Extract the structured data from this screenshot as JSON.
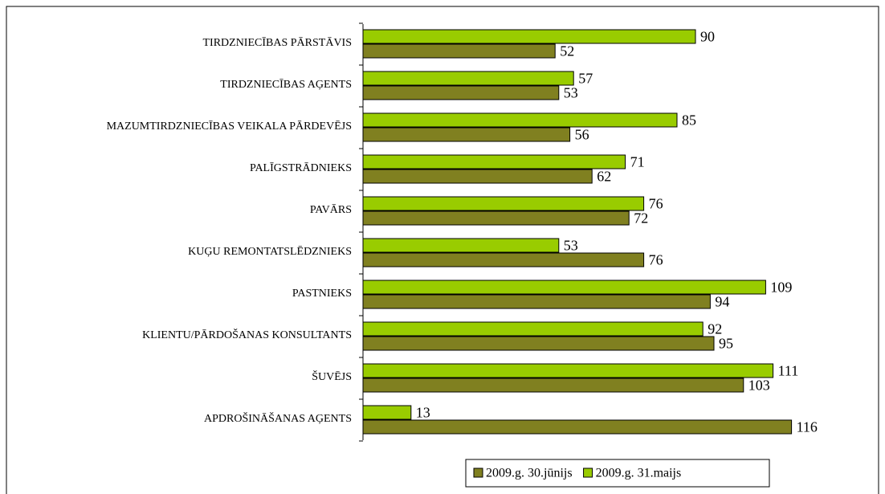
{
  "chart_data": {
    "type": "bar",
    "orientation": "horizontal",
    "categories": [
      "TIRDZNIECĪBAS PĀRSTĀVIS",
      "TIRDZNIECĪBAS AĢENTS",
      "MAZUMTIRDZNIECĪBAS VEIKALA PĀRDEVĒJS",
      "PALĪGSTRĀDNIEKS",
      "PAVĀRS",
      "KUĢU REMONTATSLĒDZNIEKS",
      "PASTNIEKS",
      "KLIENTU/PĀRDOŠANAS KONSULTANTS",
      "ŠUVĒJS",
      "APDROŠINĀŠANAS AĢENTS"
    ],
    "series": [
      {
        "name": "2009.g. 30.jūnijs",
        "color": "#808020",
        "values": [
          52,
          53,
          56,
          62,
          72,
          76,
          94,
          95,
          103,
          116
        ]
      },
      {
        "name": "2009.g. 31.maijs",
        "color": "#99cc00",
        "values": [
          90,
          57,
          85,
          71,
          76,
          53,
          109,
          92,
          111,
          13
        ]
      }
    ],
    "legend": "bottom"
  }
}
